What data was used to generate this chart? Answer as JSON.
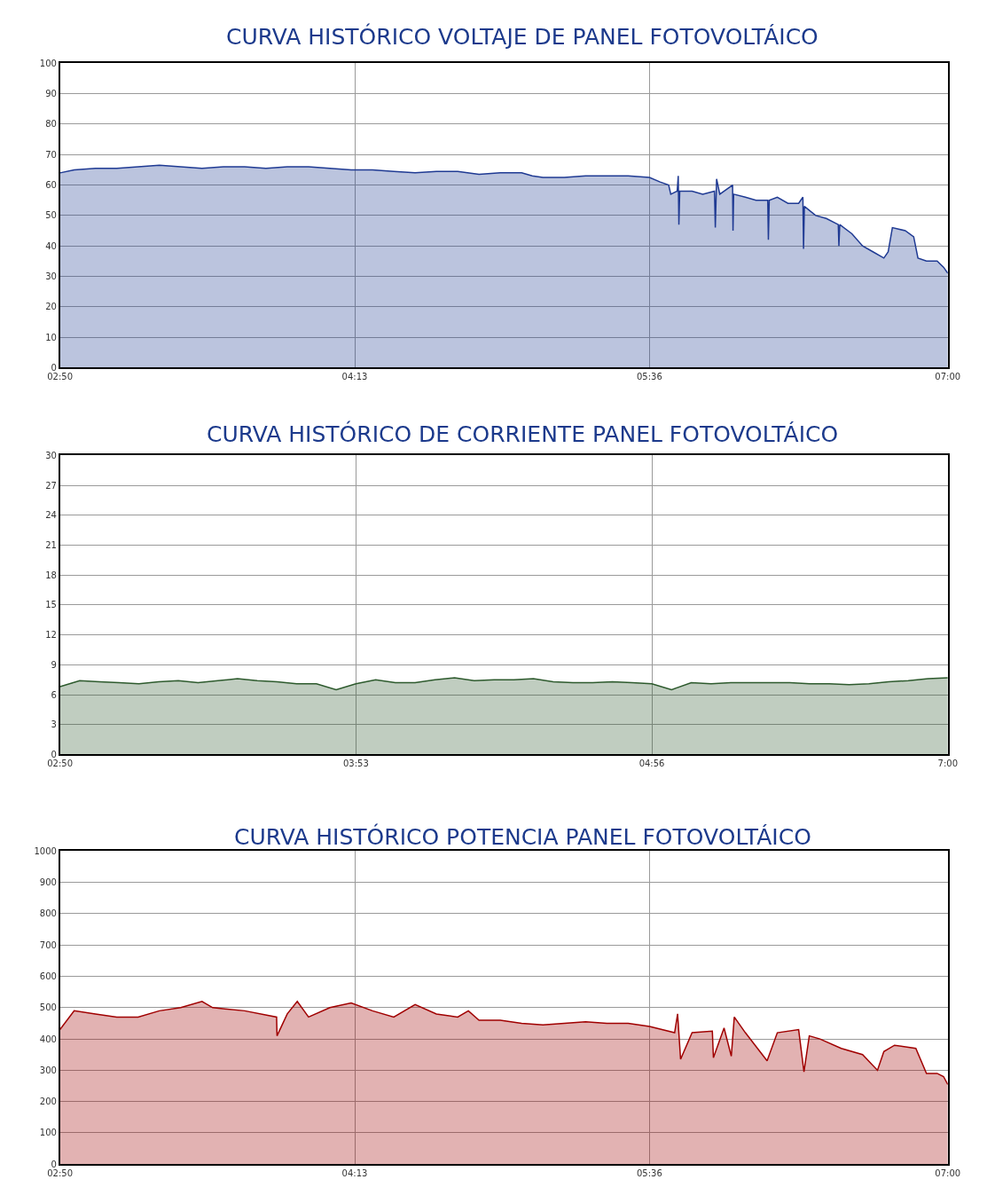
{
  "chart_data": [
    {
      "type": "area",
      "title": "CURVA HISTÓRICO VOLTAJE DE PANEL FOTOVOLTÁICO",
      "x": [
        2.8333,
        2.9,
        3.0,
        3.1,
        3.2,
        3.3,
        3.4,
        3.5,
        3.6,
        3.7,
        3.8,
        3.9,
        4.0,
        4.1,
        4.2,
        4.3,
        4.4,
        4.5,
        4.6,
        4.7,
        4.8,
        4.9,
        5.0,
        5.05,
        5.1,
        5.2,
        5.3,
        5.4,
        5.5,
        5.6,
        5.65,
        5.69,
        5.7,
        5.73,
        5.735,
        5.738,
        5.742,
        5.8,
        5.85,
        5.905,
        5.909,
        5.915,
        5.93,
        5.99,
        5.992,
        5.995,
        6.05,
        6.1,
        6.155,
        6.158,
        6.162,
        6.2,
        6.25,
        6.3,
        6.32,
        6.323,
        6.327,
        6.38,
        6.43,
        6.486,
        6.489,
        6.493,
        6.55,
        6.6,
        6.65,
        6.7,
        6.72,
        6.74,
        6.8,
        6.84,
        6.86,
        6.9,
        6.95,
        6.98,
        7.0
      ],
      "series": [
        {
          "color": "#1f3a93",
          "values": [
            64,
            65,
            65.5,
            65.5,
            66,
            66.5,
            66,
            65.5,
            66,
            66,
            65.5,
            66,
            66,
            65.5,
            65,
            65,
            64.5,
            64,
            64.5,
            64.5,
            63.5,
            64,
            64,
            63,
            62.5,
            62.5,
            63,
            63,
            63,
            62.5,
            61,
            60,
            57,
            58,
            63,
            47,
            58,
            58,
            57,
            58,
            46,
            62,
            57,
            60,
            45,
            57,
            56,
            55,
            55,
            42,
            55,
            56,
            54,
            54,
            56,
            39,
            53,
            50,
            49,
            47,
            40,
            47,
            44,
            40,
            38,
            36,
            38,
            46,
            45,
            43,
            36,
            35,
            35,
            33,
            31
          ]
        }
      ],
      "xlim": [
        2.8333,
        7.0
      ],
      "xticks": [
        {
          "value": 2.8333,
          "label": "02:50"
        },
        {
          "value": 4.2167,
          "label": "04:13"
        },
        {
          "value": 5.6,
          "label": "05:36"
        },
        {
          "value": 7.0,
          "label": "07:00"
        }
      ],
      "ylim": [
        0,
        100
      ],
      "yticks": [
        0,
        10,
        20,
        30,
        40,
        50,
        60,
        70,
        80,
        90,
        100
      ],
      "grid": true
    },
    {
      "type": "area",
      "title": "CURVA HISTÓRICO DE CORRIENTE PANEL FOTOVOLTÁICO",
      "categories": [
        "02:50",
        null,
        null,
        null,
        null,
        null,
        null,
        null,
        null,
        null,
        null,
        null,
        null,
        null,
        null,
        "03:53",
        null,
        null,
        null,
        null,
        null,
        null,
        null,
        null,
        null,
        null,
        null,
        null,
        null,
        null,
        "04:56",
        null,
        null,
        null,
        null,
        null,
        null,
        null,
        null,
        null,
        null,
        null,
        null,
        null,
        null,
        "7:00"
      ],
      "series": [
        {
          "color": "#2d5a2d",
          "values": [
            6.8,
            7.4,
            7.3,
            7.2,
            7.1,
            7.3,
            7.4,
            7.2,
            7.4,
            7.6,
            7.4,
            7.3,
            7.1,
            7.1,
            6.5,
            7.1,
            7.5,
            7.2,
            7.2,
            7.5,
            7.7,
            7.4,
            7.5,
            7.5,
            7.6,
            7.3,
            7.2,
            7.2,
            7.3,
            7.2,
            7.1,
            6.5,
            7.2,
            7.1,
            7.2,
            7.2,
            7.2,
            7.2,
            7.1,
            7.1,
            7.0,
            7.1,
            7.3,
            7.4,
            7.6,
            7.7
          ]
        }
      ],
      "ylim": [
        0,
        30
      ],
      "yticks": [
        0,
        3,
        6,
        9,
        12,
        15,
        18,
        21,
        24,
        27,
        30
      ],
      "grid": true
    },
    {
      "type": "area",
      "title": "CURVA HISTÓRICO POTENCIA PANEL FOTOVOLTÁICO",
      "x": [
        2.8333,
        2.9,
        3.0,
        3.1,
        3.2,
        3.3,
        3.4,
        3.5,
        3.55,
        3.7,
        3.85,
        3.852,
        3.9,
        3.947,
        4.0,
        4.1,
        4.2,
        4.3,
        4.4,
        4.5,
        4.6,
        4.7,
        4.75,
        4.8,
        4.9,
        5.0,
        5.1,
        5.2,
        5.3,
        5.4,
        5.5,
        5.6,
        5.718,
        5.732,
        5.746,
        5.8,
        5.895,
        5.9,
        5.95,
        5.984,
        5.998,
        6.05,
        6.152,
        6.2,
        6.3,
        6.325,
        6.35,
        6.4,
        6.5,
        6.6,
        6.67,
        6.7,
        6.75,
        6.85,
        6.9,
        6.95,
        6.98,
        7.0
      ],
      "series": [
        {
          "color": "#a00000",
          "values": [
            430,
            490,
            480,
            470,
            470,
            490,
            500,
            520,
            500,
            490,
            470,
            410,
            480,
            520,
            470,
            500,
            515,
            490,
            470,
            510,
            480,
            470,
            490,
            460,
            460,
            450,
            445,
            450,
            455,
            450,
            450,
            440,
            420,
            480,
            335,
            420,
            425,
            340,
            435,
            345,
            470,
            420,
            330,
            420,
            430,
            295,
            410,
            400,
            370,
            350,
            300,
            360,
            380,
            370,
            290,
            290,
            280,
            255
          ]
        }
      ],
      "xlim": [
        2.8333,
        7.0
      ],
      "xticks": [
        {
          "value": 2.8333,
          "label": "02:50"
        },
        {
          "value": 4.2167,
          "label": "04:13"
        },
        {
          "value": 5.6,
          "label": "05:36"
        },
        {
          "value": 7.0,
          "label": "07:00"
        }
      ],
      "ylim": [
        0,
        1000
      ],
      "yticks": [
        0,
        100,
        200,
        300,
        400,
        500,
        600,
        700,
        800,
        900,
        1000
      ],
      "grid": true
    }
  ]
}
